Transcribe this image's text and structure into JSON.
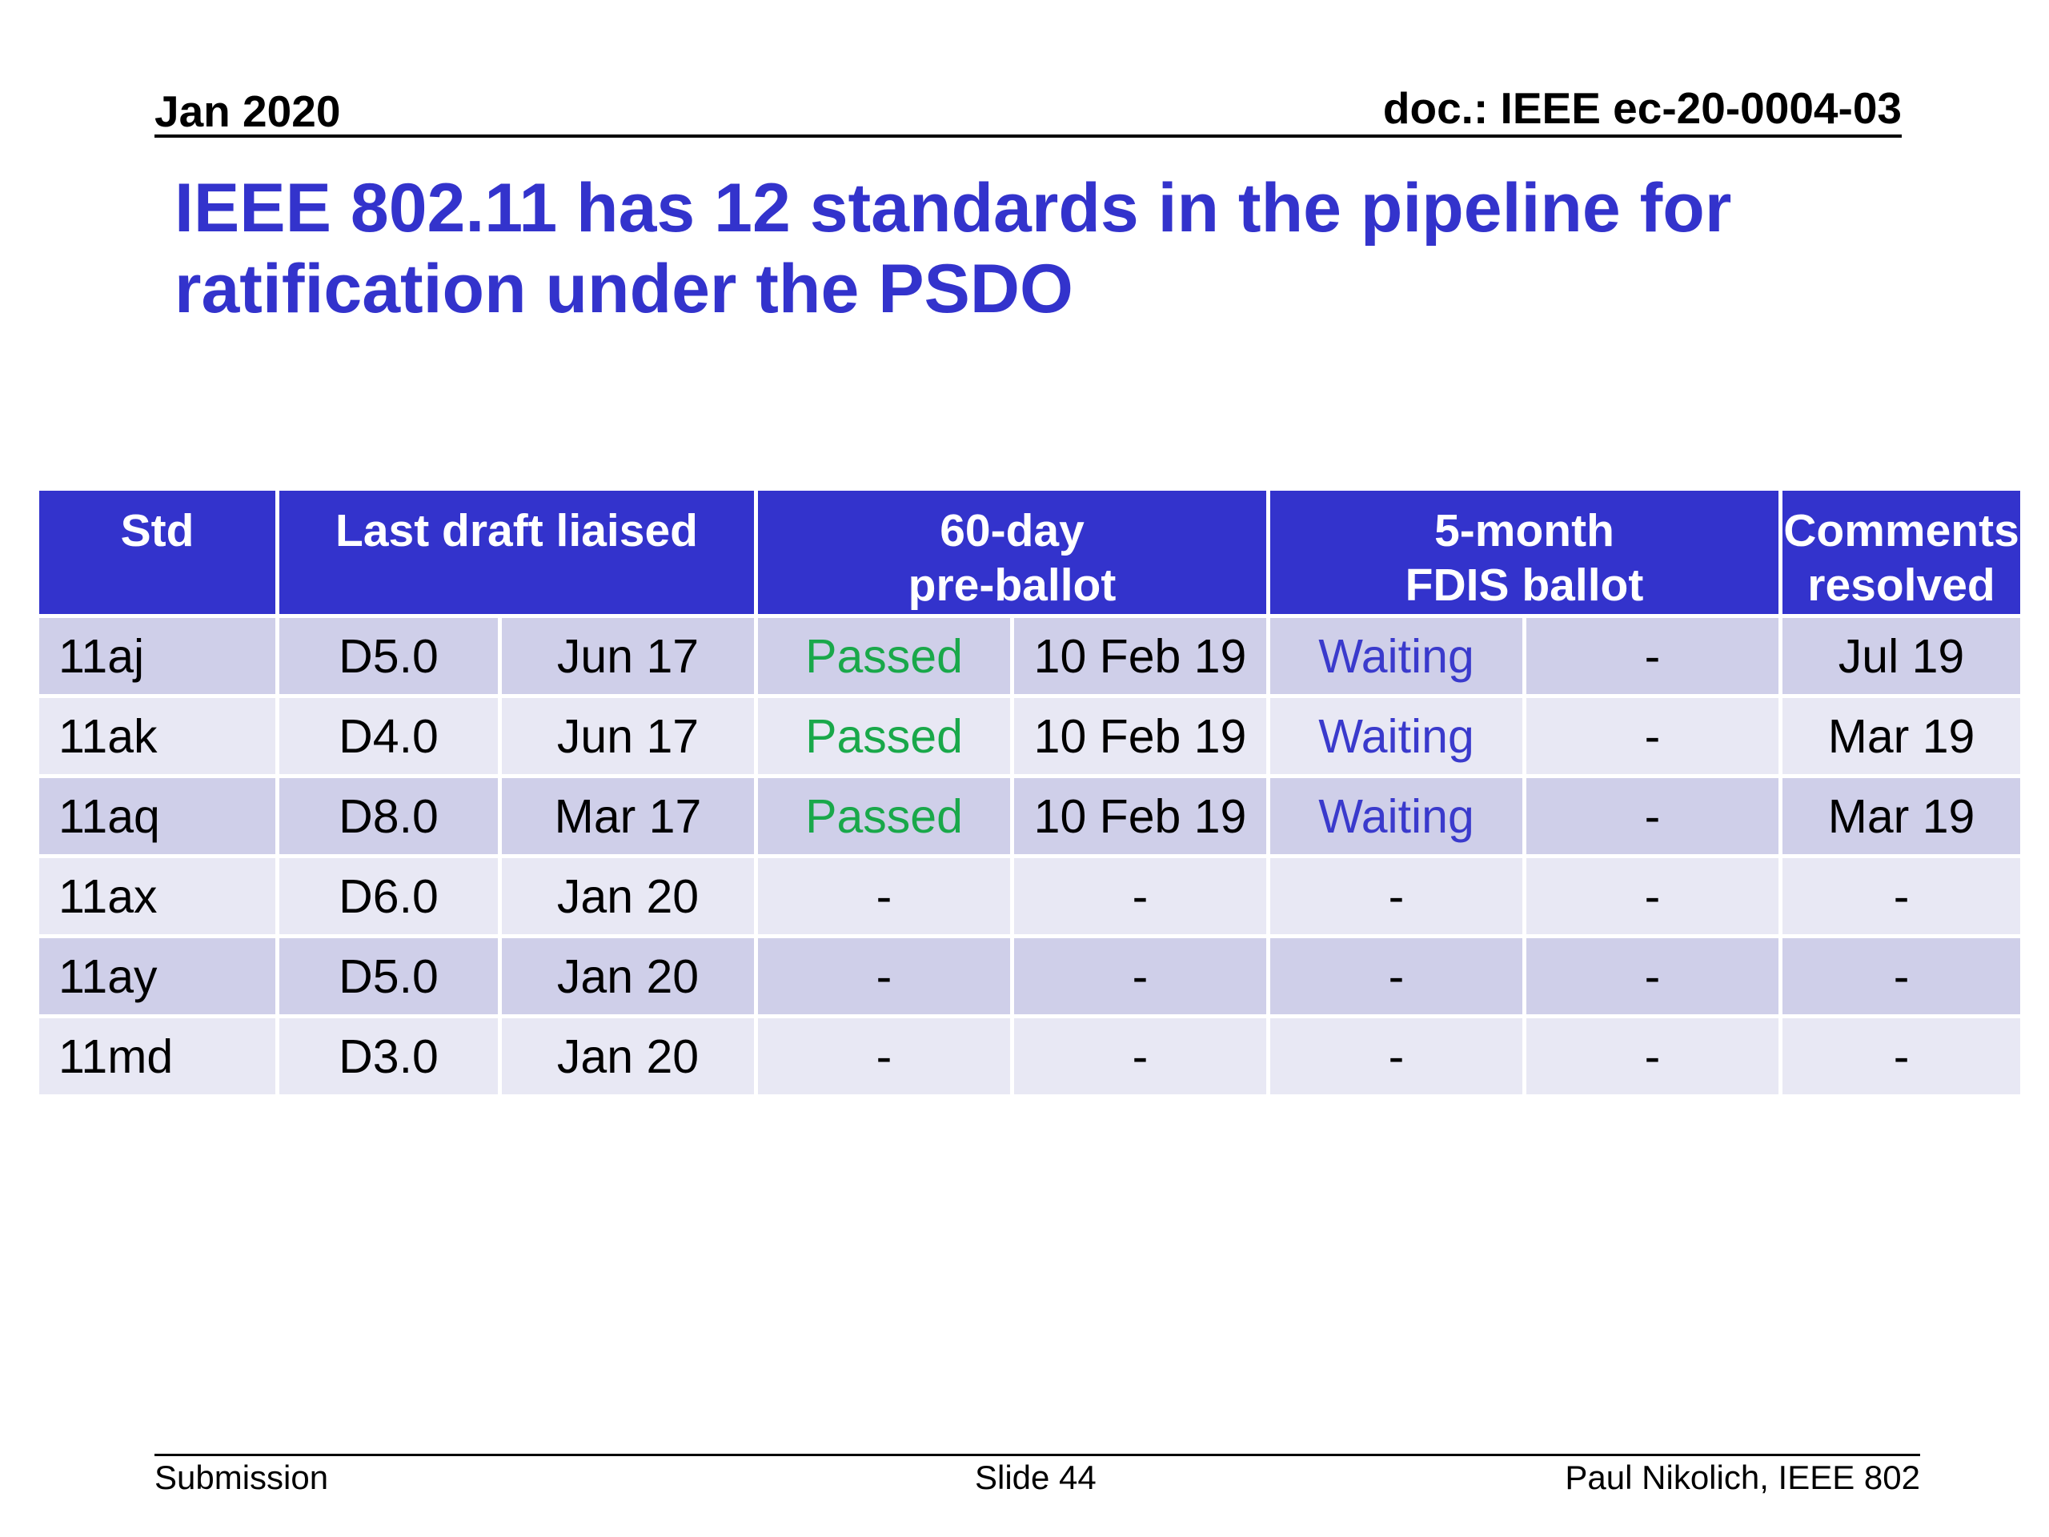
{
  "header": {
    "date": "Jan 2020",
    "doc": "doc.: IEEE ec-20-0004-03"
  },
  "title": {
    "line1": "IEEE 802.11 has 12 standards in the pipeline for",
    "line2": "ratification under the PSDO"
  },
  "table": {
    "headers": {
      "std": "Std",
      "last_draft": "Last draft liaised",
      "preballot_line1": "60-day",
      "preballot_line2": "pre-ballot",
      "fdis_line1": "5-month",
      "fdis_line2": "FDIS ballot",
      "comments_line1": "Comments",
      "comments_line2": "resolved"
    },
    "rows": [
      [
        "11aj",
        "D5.0",
        "Jun 17",
        "Passed",
        "10 Feb 19",
        "Waiting",
        "-",
        "Jul 19"
      ],
      [
        "11ak",
        "D4.0",
        "Jun 17",
        "Passed",
        "10 Feb 19",
        "Waiting",
        "-",
        "Mar 19"
      ],
      [
        "11aq",
        "D8.0",
        "Mar 17",
        "Passed",
        "10 Feb 19",
        "Waiting",
        "-",
        "Mar 19"
      ],
      [
        "11ax",
        "D6.0",
        "Jan 20",
        "-",
        "-",
        "-",
        "-",
        "-"
      ],
      [
        "11ay",
        "D5.0",
        "Jan 20",
        "-",
        "-",
        "-",
        "-",
        "-"
      ],
      [
        "11md",
        "D3.0",
        "Jan 20",
        "-",
        "-",
        "-",
        "-",
        "-"
      ]
    ]
  },
  "footer": {
    "left": "Submission",
    "center": "Slide 44",
    "right": "Paul Nikolich, IEEE 802"
  },
  "colors": {
    "title": "#3333cc",
    "header_bg": "#3333cc",
    "row_odd": "#cfcfe9",
    "row_even": "#e8e8f4",
    "passed": "#19a84a",
    "waiting": "#3a3acc"
  }
}
